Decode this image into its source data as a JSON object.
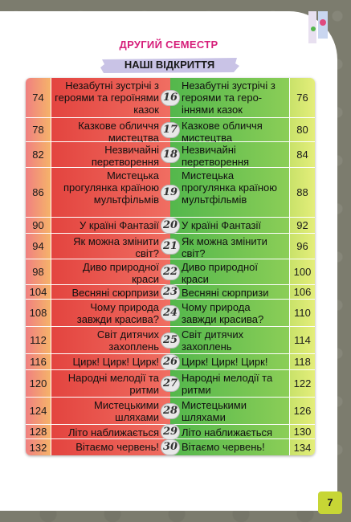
{
  "header": {
    "title": "ДРУГИЙ СЕМЕСТР",
    "subtitle": "НАШІ ВІДКРИТТЯ"
  },
  "rows": [
    {
      "left_page": "74",
      "left_text": "Незабутні зустрічі з героями та героїнями казок",
      "num": "16",
      "right_text": "Незабутні зустрічі з героями та геро-іннями казок",
      "right_page": "76"
    },
    {
      "left_page": "78",
      "left_text": "Казкове обличчя мистецтва",
      "num": "17",
      "right_text": "Казкове обличчя мистецтва",
      "right_page": "80"
    },
    {
      "left_page": "82",
      "left_text": "Незвичайні перетворення",
      "num": "18",
      "right_text": "Незвичайні перетворення",
      "right_page": "84"
    },
    {
      "left_page": "86",
      "left_text": "Мистецька прогулянка країною мультфільмів",
      "num": "19",
      "right_text": "Мистецька прогулянка країною мультфільмів",
      "right_page": "88"
    },
    {
      "left_page": "90",
      "left_text": "У країні Фантазії",
      "num": "20",
      "right_text": "У країні Фантазії",
      "right_page": "92"
    },
    {
      "left_page": "94",
      "left_text": "Як можна змінити світ?",
      "num": "21",
      "right_text": "Як можна змінити світ?",
      "right_page": "96"
    },
    {
      "left_page": "98",
      "left_text": "Диво природної краси",
      "num": "22",
      "right_text": "Диво природної краси",
      "right_page": "100"
    },
    {
      "left_page": "104",
      "left_text": "Весняні сюрпризи",
      "num": "23",
      "right_text": "Весняні сюрпризи",
      "right_page": "106"
    },
    {
      "left_page": "108",
      "left_text": "Чому природа завжди красива?",
      "num": "24",
      "right_text": "Чому природа завжди красива?",
      "right_page": "110"
    },
    {
      "left_page": "112",
      "left_text": "Світ дитячих захоплень",
      "num": "25",
      "right_text": "Світ дитячих захоплень",
      "right_page": "114"
    },
    {
      "left_page": "116",
      "left_text": "Цирк! Цирк! Цирк!",
      "num": "26",
      "right_text": "Цирк! Цирк! Цирк!",
      "right_page": "118"
    },
    {
      "left_page": "120",
      "left_text": "Народні мелодії та ритми",
      "num": "27",
      "right_text": "Народні мелодії та ритми",
      "right_page": "122"
    },
    {
      "left_page": "124",
      "left_text": "Мистецькими шляхами",
      "num": "28",
      "right_text": "Мистецькими шляхами",
      "right_page": "126"
    },
    {
      "left_page": "128",
      "left_text": "Літо наближається",
      "num": "29",
      "right_text": "Літо наближається",
      "right_page": "130"
    },
    {
      "left_page": "132",
      "left_text": "Вітаємо червень!",
      "num": "30",
      "right_text": "Вітаємо червень!",
      "right_page": "134"
    }
  ],
  "footer": {
    "page_number": "7"
  }
}
